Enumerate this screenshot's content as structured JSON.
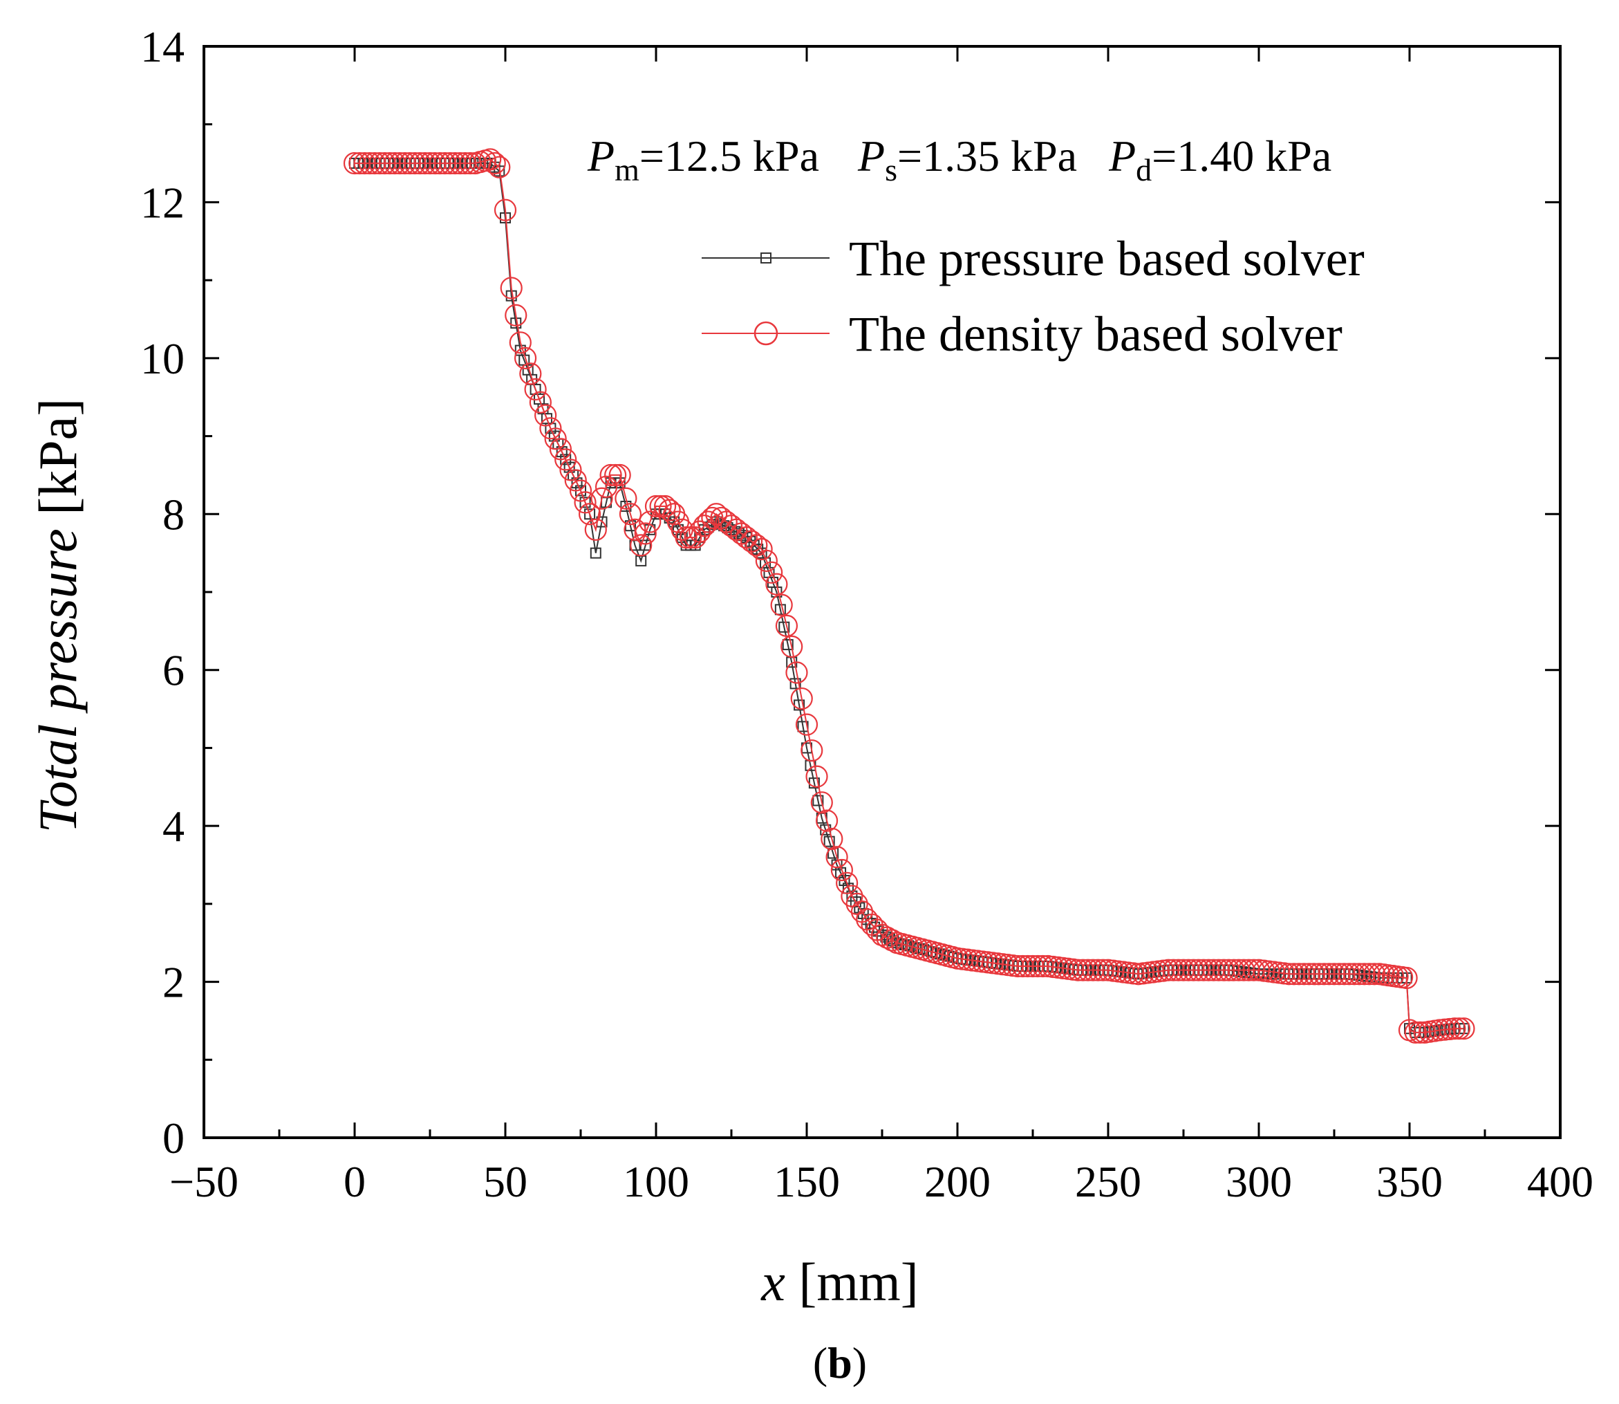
{
  "chart_data": {
    "type": "scatter",
    "title": "",
    "xlabel": "x [mm]",
    "ylabel": "Total pressure [kPa]",
    "xlabel_var": "x",
    "xlabel_unit": " [mm]",
    "ylabel_var": "Total pressure",
    "ylabel_unit": " [kPa]",
    "xlim": [
      -50,
      400
    ],
    "ylim": [
      0,
      14
    ],
    "xticks": [
      -50,
      0,
      50,
      100,
      150,
      200,
      250,
      300,
      350,
      400
    ],
    "xtick_labels": [
      "−50",
      "0",
      "50",
      "100",
      "150",
      "200",
      "250",
      "300",
      "350",
      "400"
    ],
    "yticks": [
      0,
      2,
      4,
      6,
      8,
      10,
      12,
      14
    ],
    "ytick_labels": [
      "0",
      "2",
      "4",
      "6",
      "8",
      "10",
      "12",
      "14"
    ],
    "grid": false,
    "legend_position": "top-right",
    "annotation": {
      "items": [
        {
          "var": "P",
          "sub": "m",
          "value": "=12.5 kPa"
        },
        {
          "var": "P",
          "sub": "s",
          "value": "=1.35 kPa"
        },
        {
          "var": "P",
          "sub": "d",
          "value": "=1.40 kPa"
        }
      ]
    },
    "panel_label": "b",
    "series": [
      {
        "name": "The pressure based solver",
        "color": "#333333",
        "marker": "square",
        "x": [
          0,
          10,
          20,
          30,
          40,
          45,
          48,
          50,
          52,
          55,
          60,
          65,
          70,
          75,
          78,
          80,
          82,
          85,
          88,
          90,
          93,
          95,
          98,
          100,
          103,
          106,
          110,
          113,
          116,
          120,
          125,
          130,
          135,
          140,
          145,
          150,
          155,
          160,
          165,
          170,
          175,
          180,
          185,
          190,
          200,
          210,
          220,
          230,
          240,
          250,
          260,
          270,
          280,
          290,
          300,
          310,
          320,
          330,
          340,
          349,
          350,
          352,
          355,
          360,
          365,
          368
        ],
        "y": [
          12.5,
          12.5,
          12.5,
          12.5,
          12.5,
          12.5,
          12.4,
          11.8,
          10.8,
          10.1,
          9.6,
          9.1,
          8.7,
          8.3,
          8.0,
          7.5,
          7.9,
          8.4,
          8.4,
          8.1,
          7.6,
          7.4,
          7.8,
          8.0,
          8.0,
          7.9,
          7.6,
          7.6,
          7.8,
          7.9,
          7.8,
          7.7,
          7.5,
          7.0,
          6.1,
          5.0,
          4.1,
          3.5,
          3.1,
          2.8,
          2.6,
          2.5,
          2.45,
          2.4,
          2.3,
          2.25,
          2.2,
          2.2,
          2.15,
          2.15,
          2.1,
          2.15,
          2.15,
          2.15,
          2.1,
          2.1,
          2.1,
          2.1,
          2.05,
          2.05,
          1.4,
          1.35,
          1.35,
          1.38,
          1.4,
          1.4
        ]
      },
      {
        "name": "The density based solver",
        "color": "#e8383d",
        "marker": "circle",
        "x": [
          0,
          10,
          20,
          30,
          40,
          45,
          48,
          50,
          52,
          55,
          60,
          65,
          70,
          75,
          78,
          80,
          82,
          85,
          88,
          90,
          93,
          95,
          98,
          100,
          103,
          106,
          110,
          113,
          116,
          120,
          125,
          130,
          135,
          140,
          145,
          150,
          155,
          160,
          165,
          170,
          175,
          180,
          185,
          190,
          200,
          210,
          220,
          230,
          240,
          250,
          260,
          270,
          280,
          290,
          300,
          310,
          320,
          330,
          340,
          349,
          350,
          352,
          355,
          360,
          365,
          368
        ],
        "y": [
          12.5,
          12.5,
          12.5,
          12.5,
          12.5,
          12.55,
          12.45,
          11.9,
          10.9,
          10.2,
          9.6,
          9.1,
          8.7,
          8.3,
          8.0,
          7.8,
          8.2,
          8.5,
          8.5,
          8.2,
          7.8,
          7.6,
          7.9,
          8.1,
          8.1,
          8.0,
          7.7,
          7.7,
          7.85,
          8.0,
          7.85,
          7.7,
          7.55,
          7.1,
          6.3,
          5.3,
          4.3,
          3.6,
          3.1,
          2.8,
          2.6,
          2.5,
          2.45,
          2.4,
          2.3,
          2.25,
          2.2,
          2.2,
          2.15,
          2.15,
          2.1,
          2.15,
          2.15,
          2.15,
          2.15,
          2.1,
          2.1,
          2.1,
          2.1,
          2.05,
          1.38,
          1.35,
          1.35,
          1.38,
          1.4,
          1.4
        ]
      }
    ]
  }
}
